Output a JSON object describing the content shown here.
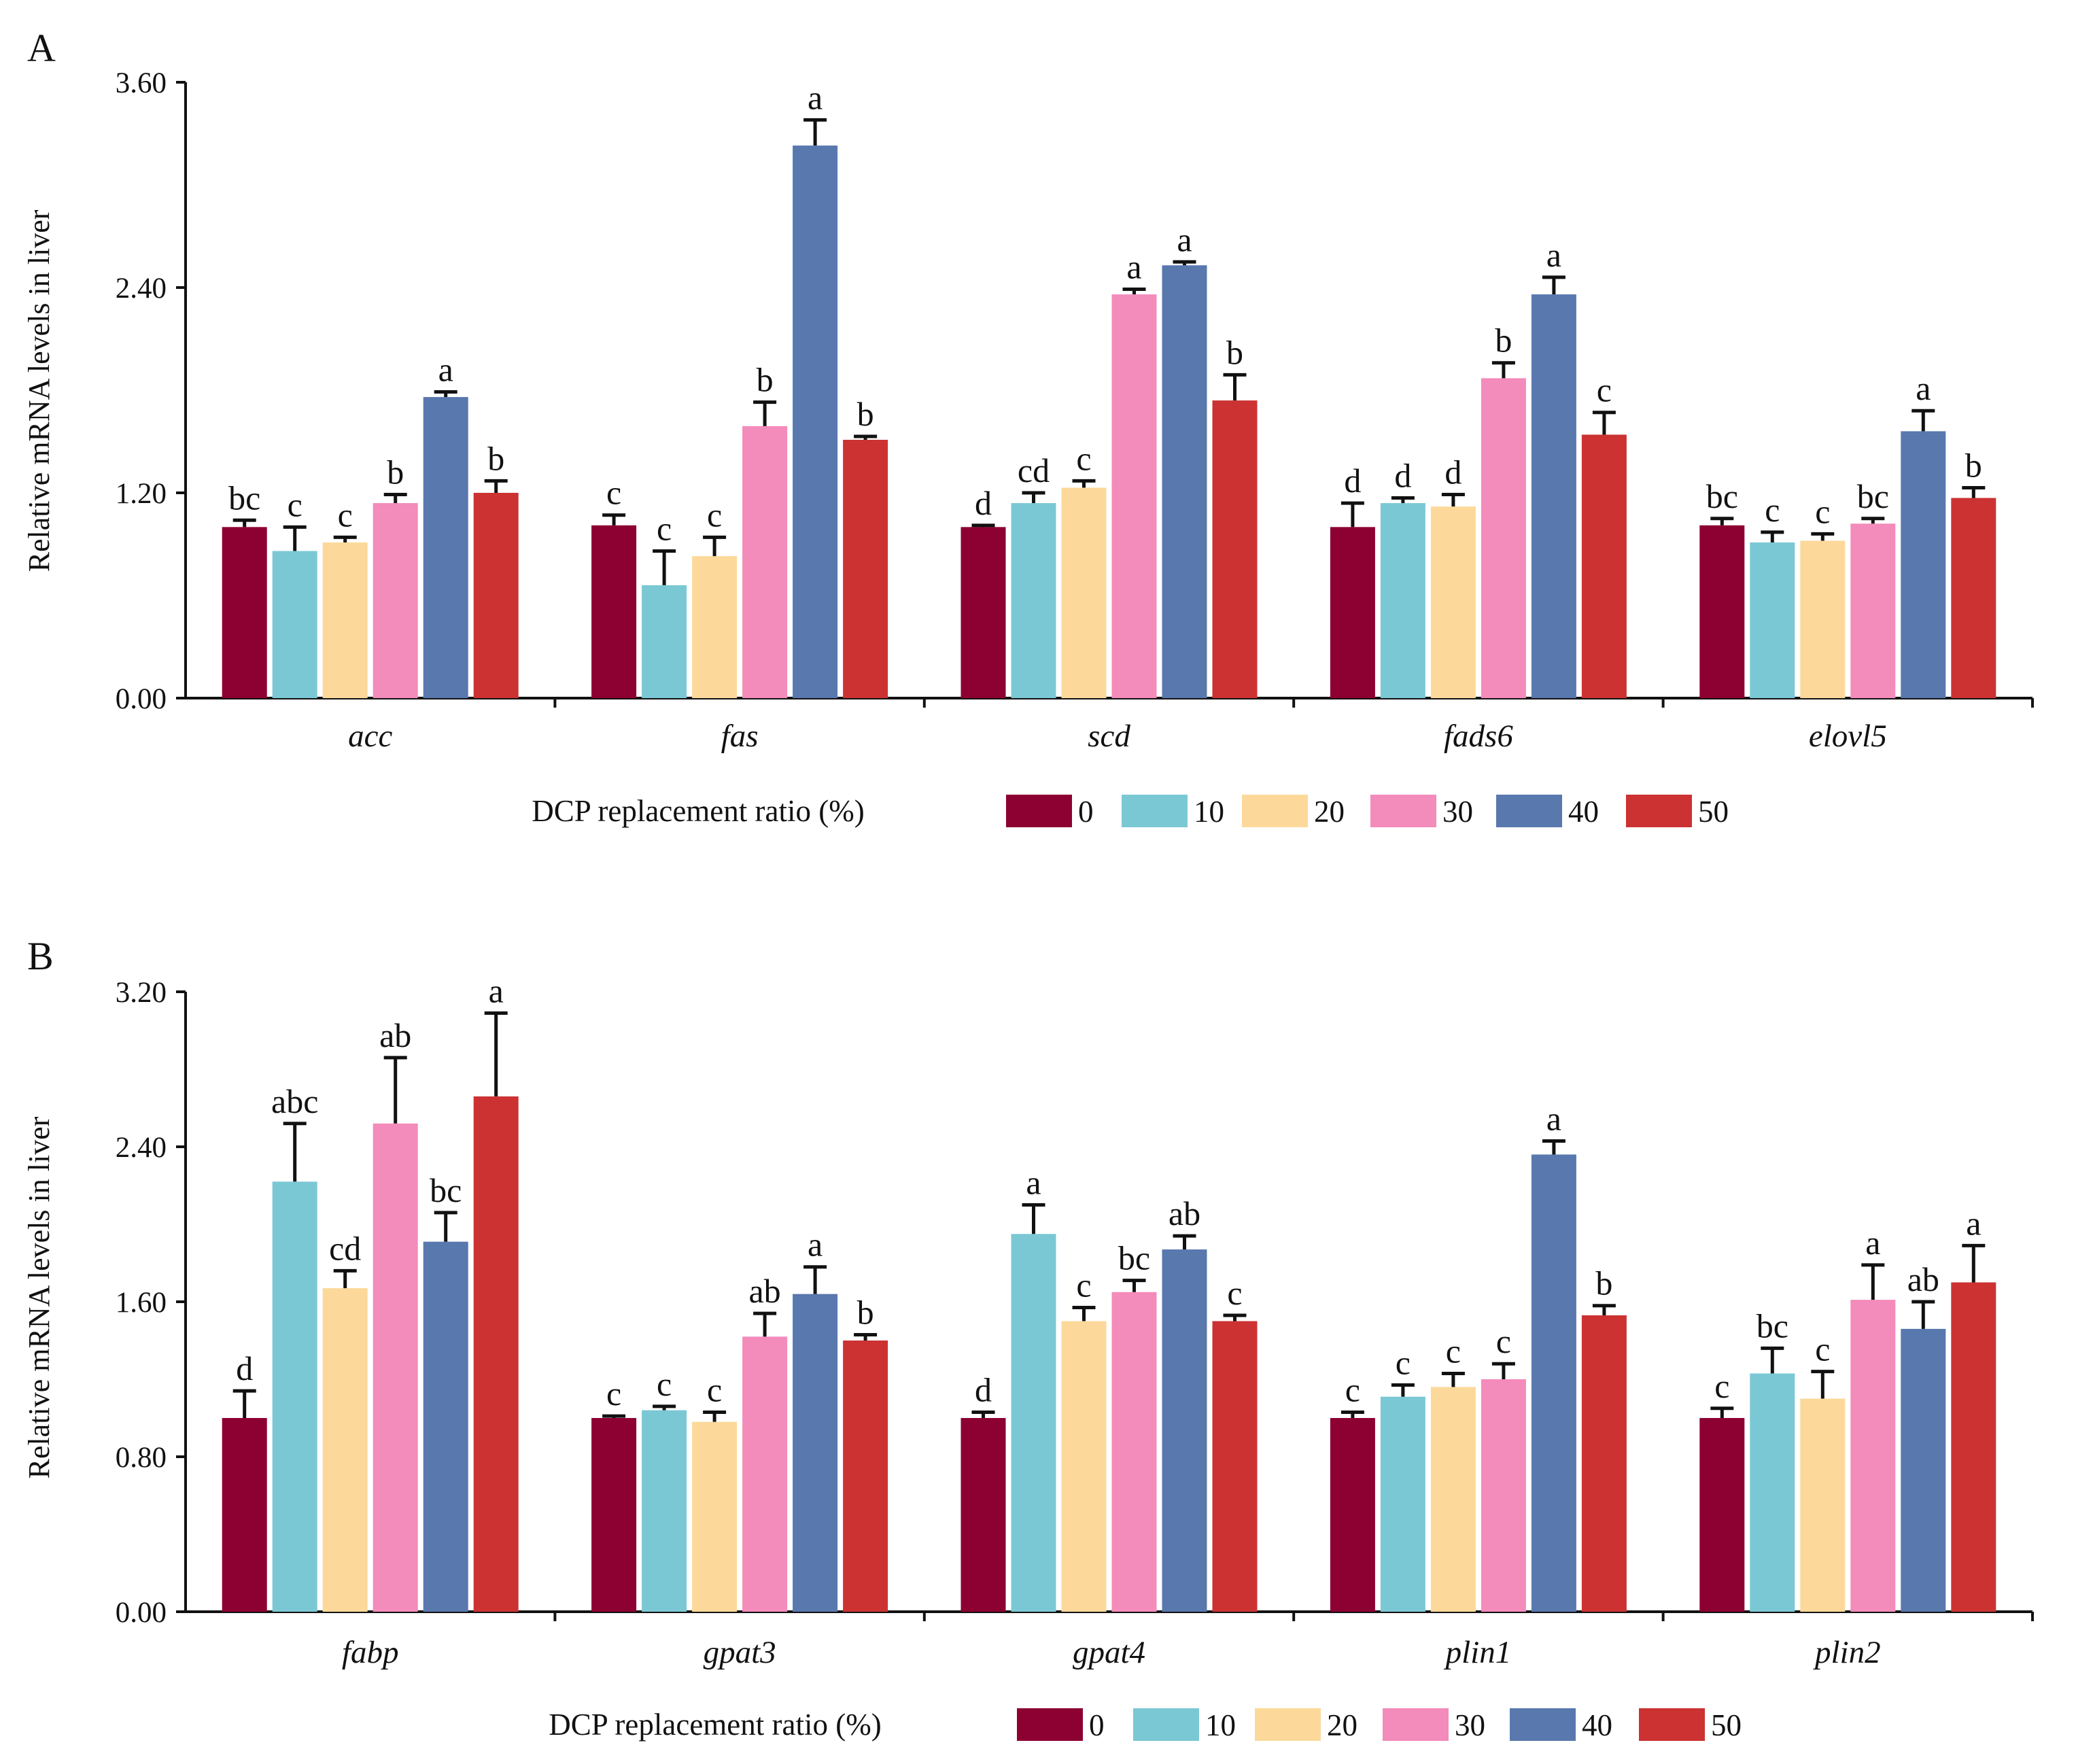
{
  "chart_data": [
    {
      "panel_label": "A",
      "type": "bar",
      "categories": [
        "acc",
        "fas",
        "scd",
        "fads6",
        "elovl5"
      ],
      "xlabel": "",
      "ylabel": "Relative mRNA levels in liver",
      "ylim": [
        0,
        3.6
      ],
      "yticks": [
        "0.00",
        "1.20",
        "2.40",
        "3.60"
      ],
      "grid": false,
      "legend_title": "DCP replacement ratio (%)",
      "legend_position": "bottom",
      "series": [
        {
          "name": "0",
          "color": "#8C0032",
          "values": [
            1.0,
            1.01,
            1.0,
            1.0,
            1.01
          ],
          "errors": [
            0.04,
            0.06,
            0.01,
            0.14,
            0.04
          ],
          "letters": [
            "bc",
            "c",
            "d",
            "d",
            "bc"
          ]
        },
        {
          "name": "10",
          "color": "#7BC8D5",
          "values": [
            0.86,
            0.66,
            1.14,
            1.14,
            0.91
          ],
          "errors": [
            0.14,
            0.2,
            0.06,
            0.03,
            0.06
          ],
          "letters": [
            "c",
            "c",
            "cd",
            "d",
            "c"
          ]
        },
        {
          "name": "20",
          "color": "#FCD99A",
          "values": [
            0.91,
            0.83,
            1.23,
            1.12,
            0.92
          ],
          "errors": [
            0.03,
            0.11,
            0.04,
            0.07,
            0.04
          ],
          "letters": [
            "c",
            "c",
            "c",
            "d",
            "c"
          ]
        },
        {
          "name": "30",
          "color": "#F38BBB",
          "values": [
            1.14,
            1.59,
            2.36,
            1.87,
            1.02
          ],
          "errors": [
            0.05,
            0.14,
            0.03,
            0.09,
            0.03
          ],
          "letters": [
            "b",
            "b",
            "a",
            "b",
            "bc"
          ]
        },
        {
          "name": "40",
          "color": "#5878AE",
          "values": [
            1.76,
            3.23,
            2.53,
            2.36,
            1.56
          ],
          "errors": [
            0.03,
            0.15,
            0.02,
            0.1,
            0.12
          ],
          "letters": [
            "a",
            "a",
            "a",
            "a",
            "a"
          ]
        },
        {
          "name": "50",
          "color": "#CC3232",
          "values": [
            1.2,
            1.51,
            1.74,
            1.54,
            1.17
          ],
          "errors": [
            0.07,
            0.02,
            0.15,
            0.13,
            0.06
          ],
          "letters": [
            "b",
            "b",
            "b",
            "c",
            "b"
          ]
        }
      ]
    },
    {
      "panel_label": "B",
      "type": "bar",
      "categories": [
        "fabp",
        "gpat3",
        "gpat4",
        "plin1",
        "plin2"
      ],
      "xlabel": "",
      "ylabel": "Relative mRNA levels in liver",
      "ylim": [
        0,
        3.2
      ],
      "yticks": [
        "0.00",
        "0.80",
        "1.60",
        "2.40",
        "3.20"
      ],
      "grid": false,
      "legend_title": "DCP replacement ratio (%)",
      "legend_position": "bottom",
      "series": [
        {
          "name": "0",
          "color": "#8C0032",
          "values": [
            1.0,
            1.0,
            1.0,
            1.0,
            1.0
          ],
          "errors": [
            0.14,
            0.01,
            0.03,
            0.03,
            0.05
          ],
          "letters": [
            "d",
            "c",
            "d",
            "c",
            "c"
          ]
        },
        {
          "name": "10",
          "color": "#7BC8D5",
          "values": [
            2.22,
            1.04,
            1.95,
            1.11,
            1.23
          ],
          "errors": [
            0.3,
            0.02,
            0.15,
            0.06,
            0.13
          ],
          "letters": [
            "abc",
            "c",
            "a",
            "c",
            "bc"
          ]
        },
        {
          "name": "20",
          "color": "#FCD99A",
          "values": [
            1.67,
            0.98,
            1.5,
            1.16,
            1.1
          ],
          "errors": [
            0.09,
            0.05,
            0.07,
            0.07,
            0.14
          ],
          "letters": [
            "cd",
            "c",
            "c",
            "c",
            "c"
          ]
        },
        {
          "name": "30",
          "color": "#F38BBB",
          "values": [
            2.52,
            1.42,
            1.65,
            1.2,
            1.61
          ],
          "errors": [
            0.34,
            0.12,
            0.06,
            0.08,
            0.18
          ],
          "letters": [
            "ab",
            "ab",
            "bc",
            "c",
            "a"
          ]
        },
        {
          "name": "40",
          "color": "#5878AE",
          "values": [
            1.91,
            1.64,
            1.87,
            2.36,
            1.46
          ],
          "errors": [
            0.15,
            0.14,
            0.07,
            0.07,
            0.14
          ],
          "letters": [
            "bc",
            "a",
            "ab",
            "a",
            "ab"
          ]
        },
        {
          "name": "50",
          "color": "#CC3232",
          "values": [
            2.66,
            1.4,
            1.5,
            1.53,
            1.7
          ],
          "errors": [
            0.43,
            0.03,
            0.03,
            0.05,
            0.19
          ],
          "letters": [
            "a",
            "b",
            "c",
            "b",
            "a"
          ]
        }
      ]
    }
  ]
}
